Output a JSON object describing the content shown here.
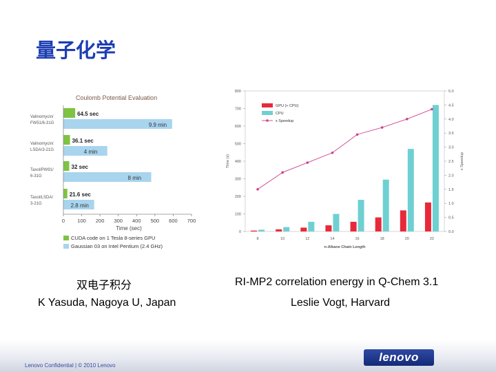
{
  "slide": {
    "title": "量子化学",
    "left_caption_1": "双电子积分",
    "left_caption_2": "K Yasuda, Nagoya U, Japan",
    "right_caption_1": "RI-MP2 correlation energy in Q-Chem 3.1",
    "right_caption_2": "Leslie Vogt, Harvard",
    "footer": "Lenovo Confidential | © 2010 Lenovo",
    "logo_text": "lenovo"
  },
  "colors": {
    "title": "#1d3db4",
    "gpu_green": "#7ec343",
    "cpu_blue": "#a8d4ee",
    "gpu_red": "#e8293a",
    "cpu_cyan": "#6fd0d2",
    "speedup_line": "#d0408a"
  },
  "chart_data": [
    {
      "type": "bar",
      "orientation": "horizontal",
      "title": "Coulomb Potential Evaluation",
      "xlabel": "Time (sec)",
      "xlim": [
        0,
        700
      ],
      "xticks": [
        "0",
        "100",
        "200",
        "300",
        "400",
        "500",
        "600",
        "700"
      ],
      "categories": [
        "Valinomycin/ FW51/6-31G",
        "Valinomycin/ LSDA/3-21G",
        "Taxol/PW91/ 6-31G",
        "Taxol/LSDA/ 3-21G"
      ],
      "category_lines": [
        [
          "Valinomycin/",
          "FW51/6-31G"
        ],
        [
          "Valinomycin/",
          "LSDA/3-21G"
        ],
        [
          "Taxol/PW91/",
          "6-31G"
        ],
        [
          "Taxol/LSDA/",
          "3-21G"
        ]
      ],
      "series": [
        {
          "name": "CUDA code on 1 Tesla 8-series GPU",
          "values": [
            64.5,
            36.1,
            32,
            21.6
          ],
          "labels": [
            "64.5 sec",
            "36.1 sec",
            "32 sec",
            "21.6 sec"
          ]
        },
        {
          "name": "Gaussian 03 on Intel Pentium (2.4 GHz)",
          "values": [
            9.9,
            4,
            8,
            2.8
          ],
          "display_scale_sec_per_unit": 60,
          "labels": [
            "9.9 min",
            "4 min",
            "8 min",
            "2.8 min"
          ]
        }
      ]
    },
    {
      "type": "bar+line",
      "xlabel": "n-Alkane Chain Length",
      "ylabel_left": "Time (s)",
      "ylabel_right": "x Speedup",
      "categories": [
        "8",
        "10",
        "12",
        "14",
        "16",
        "18",
        "20",
        "22"
      ],
      "ylim_left": [
        0,
        800
      ],
      "yticks_left": [
        "0",
        "100",
        "200",
        "300",
        "400",
        "500",
        "600",
        "700",
        "800"
      ],
      "ylim_right": [
        0,
        5
      ],
      "yticks_right": [
        "0.0",
        "0.5",
        "1.0",
        "1.5",
        "2.0",
        "2.5",
        "3.0",
        "3.5",
        "4.0",
        "4.5",
        "5.0"
      ],
      "series": [
        {
          "name": "GPU (+ CPU)",
          "kind": "bar",
          "values": [
            5,
            12,
            22,
            35,
            55,
            80,
            120,
            165
          ]
        },
        {
          "name": "CPU",
          "kind": "bar",
          "values": [
            10,
            25,
            55,
            100,
            180,
            295,
            470,
            720
          ]
        },
        {
          "name": "x Speedup",
          "kind": "line",
          "values": [
            1.5,
            2.1,
            2.45,
            2.8,
            3.45,
            3.7,
            4.0,
            4.35
          ]
        }
      ]
    }
  ]
}
